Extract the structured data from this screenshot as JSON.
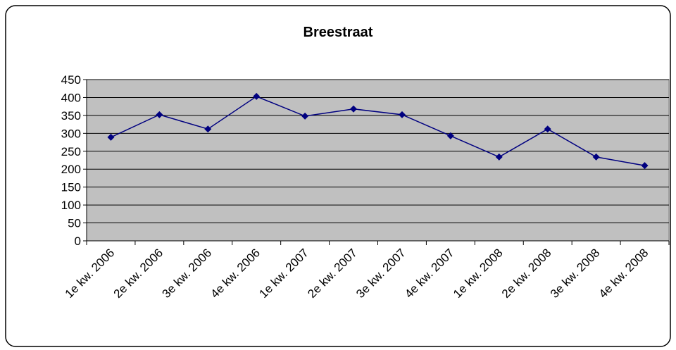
{
  "chart_data": {
    "type": "line",
    "title": "Breestraat",
    "categories": [
      "1e kw. 2006",
      "2e kw. 2006",
      "3e kw. 2006",
      "4e kw. 2006",
      "1e kw. 2007",
      "2e kw. 2007",
      "3e kw. 2007",
      "4e kw. 2007",
      "1e kw. 2008",
      "2e kw. 2008",
      "3e kw. 2008",
      "4e kw. 2008"
    ],
    "series": [
      {
        "name": "Breestraat",
        "color": "#000080",
        "values": [
          289,
          352,
          312,
          403,
          348,
          368,
          352,
          293,
          234,
          312,
          234,
          210
        ]
      }
    ],
    "ylim": [
      0,
      450
    ],
    "yticks": [
      0,
      50,
      100,
      150,
      200,
      250,
      300,
      350,
      400,
      450
    ],
    "grid": true
  }
}
